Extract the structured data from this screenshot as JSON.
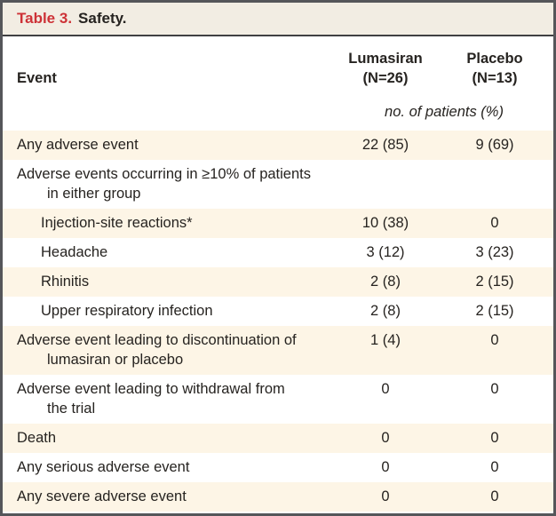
{
  "table": {
    "title_label": "Table 3.",
    "title_text": "Safety.",
    "columns": {
      "event_header": "Event",
      "group1_name": "Lumasiran",
      "group1_n": "(N=26)",
      "group2_name": "Placebo",
      "group2_n": "(N=13)",
      "unit_note": "no. of patients (%)"
    },
    "rows": [
      {
        "label": "Any adverse event",
        "label2": "",
        "indent": 0,
        "shaded": true,
        "lumasiran": "22 (85)",
        "placebo": "9 (69)"
      },
      {
        "label": "Adverse events occurring in ≥10% of patients",
        "label2": "in either group",
        "indent": 0,
        "shaded": false,
        "lumasiran": "",
        "placebo": ""
      },
      {
        "label": "Injection-site reactions*",
        "label2": "",
        "indent": 1,
        "shaded": true,
        "lumasiran": "10 (38)",
        "placebo": "0"
      },
      {
        "label": "Headache",
        "label2": "",
        "indent": 1,
        "shaded": false,
        "lumasiran": "3 (12)",
        "placebo": "3 (23)"
      },
      {
        "label": "Rhinitis",
        "label2": "",
        "indent": 1,
        "shaded": true,
        "lumasiran": "2 (8)",
        "placebo": "2 (15)"
      },
      {
        "label": "Upper respiratory infection",
        "label2": "",
        "indent": 1,
        "shaded": false,
        "lumasiran": "2 (8)",
        "placebo": "2 (15)"
      },
      {
        "label": "Adverse event leading to discontinuation of",
        "label2": "lumasiran or placebo",
        "indent": 0,
        "shaded": true,
        "lumasiran": "1 (4)",
        "placebo": "0"
      },
      {
        "label": "Adverse event leading to withdrawal from",
        "label2": "the trial",
        "indent": 0,
        "shaded": false,
        "lumasiran": "0",
        "placebo": "0"
      },
      {
        "label": "Death",
        "label2": "",
        "indent": 0,
        "shaded": true,
        "lumasiran": "0",
        "placebo": "0"
      },
      {
        "label": "Any serious adverse event",
        "label2": "",
        "indent": 0,
        "shaded": false,
        "lumasiran": "0",
        "placebo": "0"
      },
      {
        "label": "Any severe adverse event",
        "label2": "",
        "indent": 0,
        "shaded": true,
        "lumasiran": "0",
        "placebo": "0"
      }
    ],
    "colors": {
      "accent_red": "#cd3237",
      "title_band_bg": "#f2ede3",
      "row_shade_bg": "#fdf5e6",
      "border_gray": "#55565a",
      "text": "#262320"
    }
  }
}
